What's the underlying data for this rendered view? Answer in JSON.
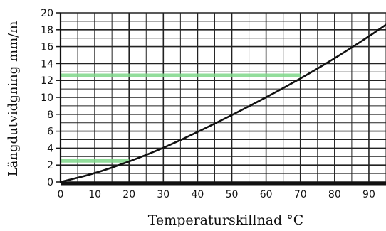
{
  "chart_data": {
    "type": "line",
    "xlabel": "Temperaturskillnad °C",
    "ylabel": "Längdutvidgning mm/m",
    "xlim": [
      0,
      95
    ],
    "ylim": [
      0,
      20
    ],
    "x_ticks": [
      0,
      10,
      20,
      30,
      40,
      50,
      60,
      70,
      80,
      90
    ],
    "y_ticks": [
      0,
      2,
      4,
      6,
      8,
      10,
      12,
      14,
      16,
      18,
      20
    ],
    "grid": true,
    "series": [
      {
        "x": [
          0,
          10,
          20,
          30,
          40,
          50,
          60,
          70,
          80,
          90,
          95
        ],
        "y": [
          0,
          1.0,
          2.4,
          4.0,
          5.9,
          7.9,
          10.0,
          12.2,
          14.6,
          17.2,
          18.6
        ],
        "color": "#111111"
      }
    ],
    "highlights": [
      {
        "y": 2.5,
        "x_end": 20,
        "color": "#7fd88a"
      },
      {
        "y": 12.6,
        "x_end": 70,
        "color": "#7fd88a"
      }
    ]
  }
}
